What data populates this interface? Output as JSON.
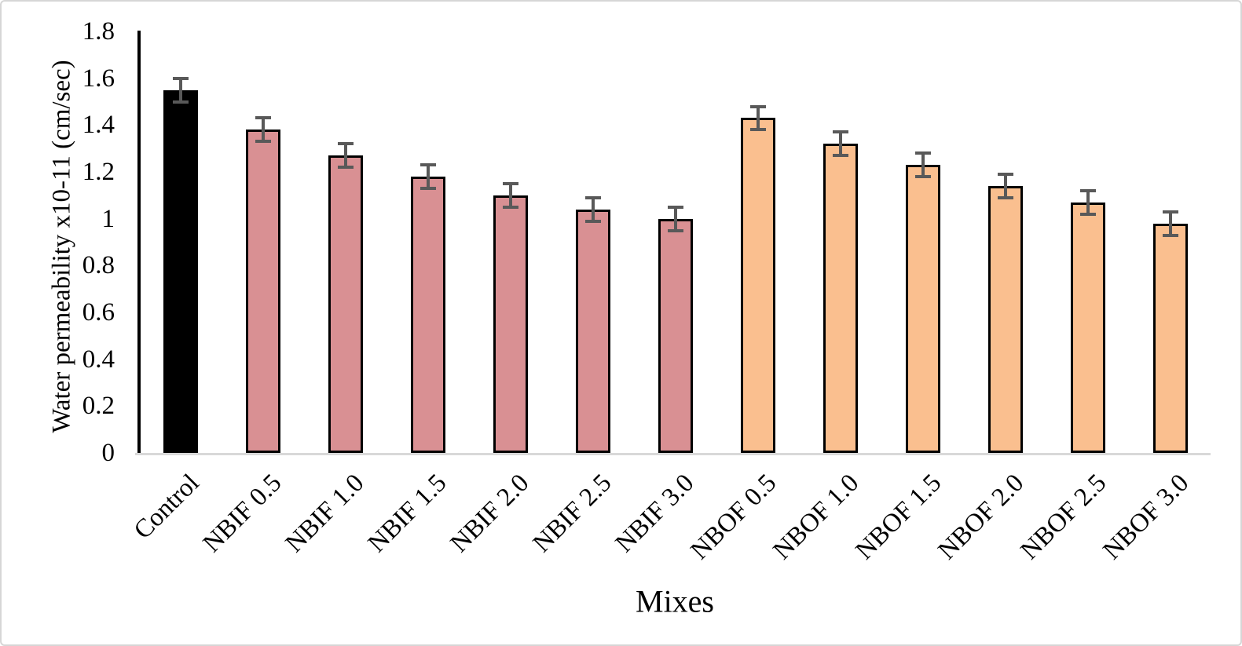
{
  "figure": {
    "background": "#ffffff",
    "border_color": "#d6d6d6"
  },
  "chart_data": {
    "type": "bar",
    "title": "",
    "xlabel": "Mixes",
    "ylabel": "Water permeability x10-11 (cm/sec)",
    "ylim": [
      0,
      1.8
    ],
    "ytick_interval": 0.2,
    "grid": false,
    "legend": false,
    "axis_line_color": "#000000",
    "baseline_color": "#d9d9d9",
    "bar_outline_color": "#000000",
    "error_bar_color": "#595959",
    "yticks": [
      {
        "label": "0",
        "value": 0
      },
      {
        "label": "0.2",
        "value": 0.2
      },
      {
        "label": "0.4",
        "value": 0.4
      },
      {
        "label": "0.6",
        "value": 0.6
      },
      {
        "label": "0.8",
        "value": 0.8
      },
      {
        "label": "1",
        "value": 1
      },
      {
        "label": "1.2",
        "value": 1.2
      },
      {
        "label": "1.4",
        "value": 1.4
      },
      {
        "label": "1.6",
        "value": 1.6
      },
      {
        "label": "1.8",
        "value": 1.8
      }
    ],
    "categories": [
      "Control",
      "NBIF 0.5",
      "NBIF 1.0",
      "NBIF 1.5",
      "NBIF 2.0",
      "NBIF 2.5",
      "NBIF 3.0",
      "NBOF 0.5",
      "NBOF 1.0",
      "NBOF 1.5",
      "NBOF 2.0",
      "NBOF 2.5",
      "NBOF 3.0"
    ],
    "values": [
      1.55,
      1.38,
      1.27,
      1.18,
      1.1,
      1.04,
      1.0,
      1.43,
      1.32,
      1.23,
      1.14,
      1.07,
      0.98
    ],
    "errors": [
      0.05,
      0.05,
      0.05,
      0.05,
      0.05,
      0.05,
      0.05,
      0.05,
      0.05,
      0.05,
      0.05,
      0.05,
      0.05
    ],
    "bar_colors": [
      "#000000",
      "#d99093",
      "#d99093",
      "#d99093",
      "#d99093",
      "#d99093",
      "#d99093",
      "#fabf8f",
      "#fabf8f",
      "#fabf8f",
      "#fabf8f",
      "#fabf8f",
      "#fabf8f"
    ],
    "color_groups": [
      {
        "name": "Control",
        "color": "#000000"
      },
      {
        "name": "NBIF",
        "color": "#d99093"
      },
      {
        "name": "NBOF",
        "color": "#fabf8f"
      }
    ]
  }
}
